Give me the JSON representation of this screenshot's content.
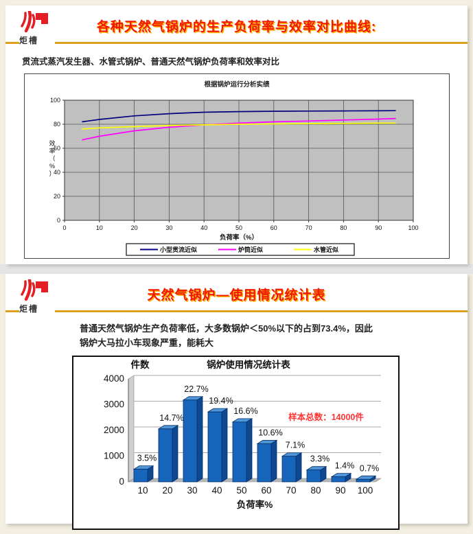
{
  "theme": {
    "title_color": "#f01800",
    "title_glow": "#ffb300",
    "divider_color": "#dfa01e",
    "logo_red": "#e31e24",
    "page_background": "#f2eee0"
  },
  "slide1": {
    "logo_text": "炬槽",
    "title": "各种天然气锅炉的生产负荷率与效率对比曲线:",
    "subtitle": "贯流式蒸汽发生器、水管式锅炉、普通天然气锅炉负荷率和效率对比"
  },
  "slide2": {
    "logo_text": "炬槽",
    "title": "天然气锅炉—使用情况统计表",
    "body_text": "普通天然气锅炉生产负荷率低，大多数锅炉＜50%以下的占到73.4%，因此锅炉大马拉小车现象严重，能耗大"
  },
  "chart_data": [
    {
      "type": "line",
      "title": "根据锅炉运行分析实绩",
      "xlabel": "负荷率（%）",
      "ylabel": "效率（%）",
      "xlim": [
        0,
        100
      ],
      "ylim": [
        0,
        100
      ],
      "x_ticks": [
        0,
        10,
        20,
        30,
        40,
        50,
        60,
        70,
        80,
        90,
        100
      ],
      "y_ticks": [
        0,
        20,
        40,
        60,
        80,
        100
      ],
      "plot_bg": "#c0c0c0",
      "grid": true,
      "legend_position": "bottom",
      "x": [
        5,
        10,
        20,
        30,
        40,
        50,
        60,
        70,
        80,
        90,
        95
      ],
      "series": [
        {
          "name": "小型贯流近似",
          "color": "#000080",
          "values": [
            82,
            84,
            87,
            88.8,
            90,
            90.5,
            90.8,
            91,
            91.1,
            91.2,
            91.3
          ]
        },
        {
          "name": "炉筒近似",
          "color": "#ff00ff",
          "values": [
            67,
            70,
            74.5,
            77.5,
            79.5,
            81,
            82,
            82.7,
            83.5,
            84.3,
            84.8
          ]
        },
        {
          "name": "水管近似",
          "color": "#ffff00",
          "values": [
            76,
            77,
            78,
            79,
            79.5,
            80,
            80.3,
            80.5,
            80.7,
            80.9,
            81
          ]
        }
      ]
    },
    {
      "type": "bar",
      "title": "锅炉使用情况统计表",
      "xlabel": "负荷率%",
      "ylabel": "件数",
      "ylim": [
        0,
        4000
      ],
      "y_ticks": [
        0,
        1000,
        2000,
        3000,
        4000
      ],
      "categories": [
        "10",
        "20",
        "30",
        "40",
        "50",
        "60",
        "70",
        "80",
        "90",
        "100"
      ],
      "values": [
        490,
        2058,
        3178,
        2716,
        2324,
        1484,
        994,
        462,
        196,
        98
      ],
      "labels": [
        "3.5%",
        "14.7%",
        "22.7%",
        "19.4%",
        "16.6%",
        "10.6%",
        "7.1%",
        "3.3%",
        "1.4%",
        "0.7%"
      ],
      "annotation": "样本总数：14000件",
      "annotation_color": "#ff3333",
      "bar_face_color": "#1766bb",
      "bar_side_color": "#0d4890",
      "bar_top_color": "#5096d6",
      "bar_edge_color": "#06306b",
      "wall_color": "#cfcfcf",
      "floor_color": "#b8b8b8"
    }
  ]
}
